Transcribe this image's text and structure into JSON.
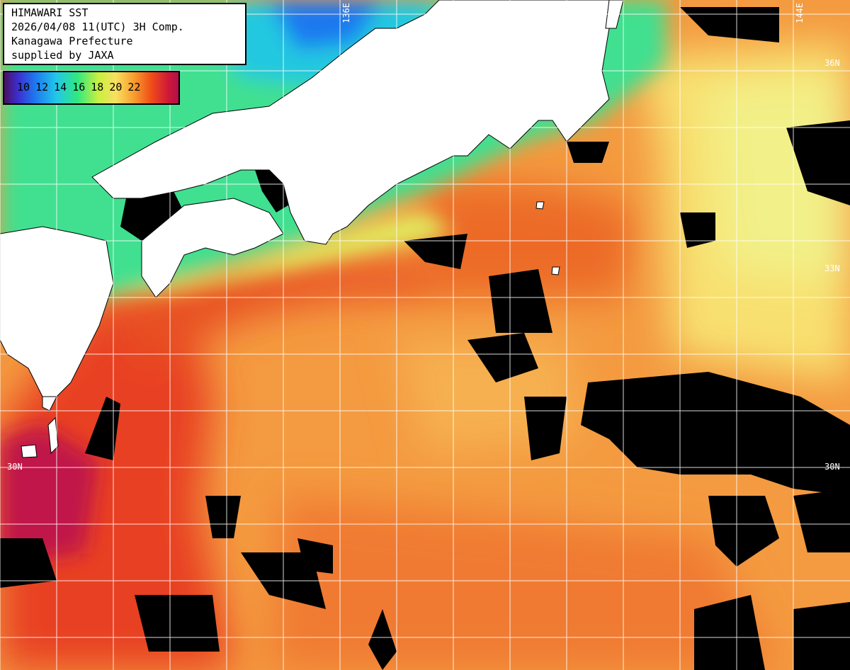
{
  "info": {
    "line1": "HIMAWARI SST",
    "line2": "2026/04/08 11(UTC) 3H Comp.",
    "line3": "Kanagawa Prefecture",
    "line4": "supplied by JAXA"
  },
  "legend": {
    "labels": [
      "10",
      "12",
      "14",
      "16",
      "18",
      "20",
      "22"
    ]
  },
  "grid": {
    "lat_labels": {
      "n36": "36N",
      "n33": "33N",
      "n30": "30N"
    },
    "lon_labels": {
      "e136": "136E",
      "e144": "144E"
    }
  },
  "colors": {
    "land": "#ffffff",
    "cloud_mask": "#000000",
    "grid_line": "#ffffff",
    "cold": "#30e880",
    "mild": "#f8d060",
    "warm": "#f07828",
    "hot": "#d01838"
  }
}
